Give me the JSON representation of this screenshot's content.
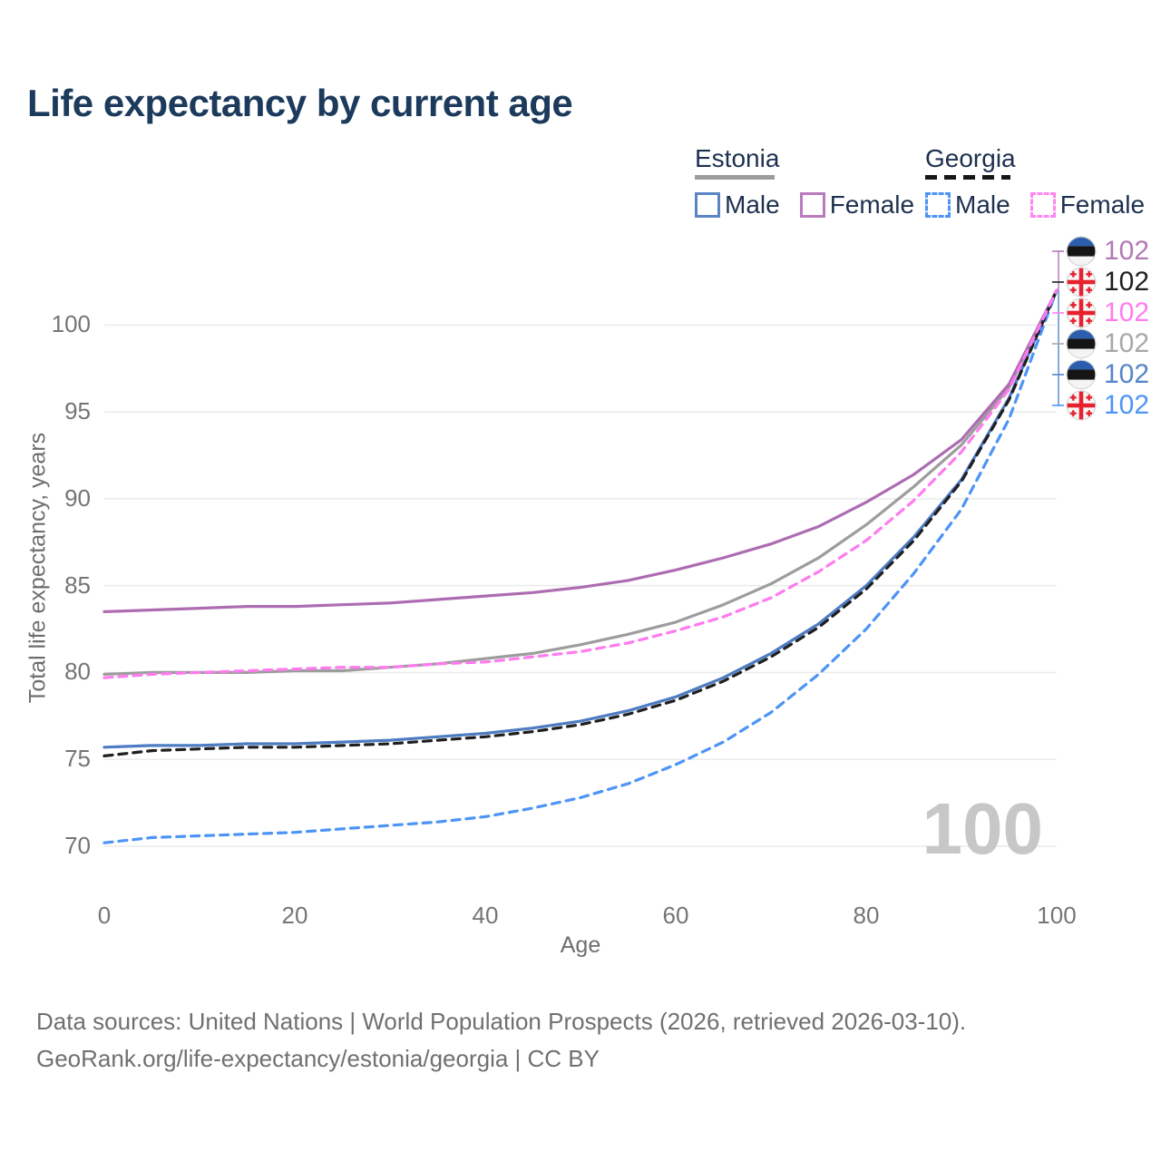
{
  "title": "Life expectancy by current age",
  "legend": {
    "estonia": {
      "label": "Estonia",
      "male": "Male",
      "female": "Female"
    },
    "georgia": {
      "label": "Georgia",
      "male": "Male",
      "female": "Female"
    }
  },
  "watermark": "100",
  "footer": {
    "line1": "Data sources: United Nations | World Population Prospects (2026, retrieved 2026-03-10).",
    "line2": "GeoRank.org/life-expectancy/estonia/georgia | CC BY"
  },
  "colors": {
    "title": "#1b3a5c",
    "legend_text": "#1d3050",
    "axis_text": "#757575",
    "gridline": "#ebebeb",
    "watermark": "#c7c7c7",
    "estonia_female": "#ad6cb2",
    "estonia_both": "#9d9d9d",
    "estonia_male": "#4d7cc2",
    "georgia_female": "#ff7bef",
    "georgia_both": "#1f1f1f",
    "georgia_male": "#4d94f7",
    "legend_estonia_male_swatch": "#5b84c4",
    "legend_estonia_female_swatch": "#b97bbd",
    "legend_georgia_male_swatch": "#4d94f7",
    "legend_georgia_female_swatch": "#ff85f0"
  },
  "chart_data": {
    "type": "line",
    "title": "Life expectancy by current age",
    "xlabel": "Age",
    "ylabel": "Total life expectancy, years",
    "x": [
      0,
      5,
      10,
      15,
      20,
      25,
      30,
      35,
      40,
      45,
      50,
      55,
      60,
      65,
      70,
      75,
      80,
      85,
      90,
      95,
      100
    ],
    "xlim": [
      0,
      100
    ],
    "ylim": [
      70,
      102
    ],
    "x_ticks": [
      0,
      20,
      40,
      60,
      80,
      100
    ],
    "y_ticks": [
      70,
      75,
      80,
      85,
      90,
      95,
      100
    ],
    "grid": "horizontal",
    "legend_position": "top-right",
    "series": [
      {
        "name": "Estonia (both sexes)",
        "country": "Estonia",
        "sex": "both",
        "style": "solid",
        "color": "#9d9d9d",
        "values": [
          79.9,
          80.0,
          80.0,
          80.0,
          80.1,
          80.1,
          80.3,
          80.5,
          80.8,
          81.1,
          81.6,
          82.2,
          82.9,
          83.9,
          85.1,
          86.6,
          88.5,
          90.7,
          93.1,
          96.4,
          102
        ]
      },
      {
        "name": "Estonia Female",
        "country": "Estonia",
        "sex": "female",
        "style": "solid",
        "color": "#ad6cb2",
        "values": [
          83.5,
          83.6,
          83.7,
          83.8,
          83.8,
          83.9,
          84.0,
          84.2,
          84.4,
          84.6,
          84.9,
          85.3,
          85.9,
          86.6,
          87.4,
          88.4,
          89.8,
          91.4,
          93.4,
          96.6,
          102
        ]
      },
      {
        "name": "Estonia Male",
        "country": "Estonia",
        "sex": "male",
        "style": "solid",
        "color": "#4d7cc2",
        "values": [
          75.7,
          75.8,
          75.8,
          75.9,
          75.9,
          76.0,
          76.1,
          76.3,
          76.5,
          76.8,
          77.2,
          77.8,
          78.6,
          79.7,
          81.1,
          82.8,
          85.0,
          87.8,
          91.1,
          95.8,
          102
        ]
      },
      {
        "name": "Georgia Male",
        "country": "Georgia",
        "sex": "male",
        "style": "dashed",
        "color": "#4d94f7",
        "values": [
          70.2,
          70.5,
          70.6,
          70.7,
          70.8,
          71.0,
          71.2,
          71.4,
          71.7,
          72.2,
          72.8,
          73.6,
          74.7,
          76.0,
          77.7,
          79.9,
          82.5,
          85.7,
          89.4,
          94.6,
          102
        ]
      },
      {
        "name": "Georgia (both sexes)",
        "country": "Georgia",
        "sex": "both",
        "style": "dashed",
        "color": "#1f1f1f",
        "values": [
          75.2,
          75.5,
          75.6,
          75.7,
          75.7,
          75.8,
          75.9,
          76.1,
          76.3,
          76.6,
          77.0,
          77.6,
          78.4,
          79.5,
          80.9,
          82.6,
          84.8,
          87.6,
          91.0,
          95.7,
          102
        ]
      },
      {
        "name": "Georgia Female",
        "country": "Georgia",
        "sex": "female",
        "style": "dashed",
        "color": "#ff7bef",
        "values": [
          79.7,
          79.9,
          80.0,
          80.1,
          80.2,
          80.3,
          80.3,
          80.5,
          80.6,
          80.9,
          81.2,
          81.7,
          82.4,
          83.2,
          84.3,
          85.8,
          87.6,
          89.9,
          92.7,
          96.3,
          102
        ]
      }
    ],
    "end_labels": [
      {
        "flag": "estonia",
        "value": "102",
        "color": "#b278b6",
        "series": "Estonia Female"
      },
      {
        "flag": "georgia",
        "value": "102",
        "color": "#1f1f1f",
        "series": "Georgia (both sexes)"
      },
      {
        "flag": "georgia",
        "value": "102",
        "color": "#ff7bef",
        "series": "Georgia Female"
      },
      {
        "flag": "estonia",
        "value": "102",
        "color": "#a8a8a8",
        "series": "Estonia (both sexes)"
      },
      {
        "flag": "estonia",
        "value": "102",
        "color": "#5585c8",
        "series": "Estonia Male"
      },
      {
        "flag": "georgia",
        "value": "102",
        "color": "#4d94f7",
        "series": "Georgia Male"
      }
    ]
  }
}
